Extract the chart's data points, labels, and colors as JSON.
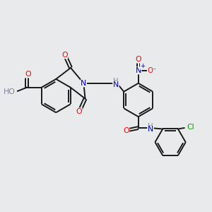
{
  "background_color": "#e8eaeb",
  "bond_color": "#1a1a1a",
  "atom_colors": {
    "O": "#ff0000",
    "N": "#0000cc",
    "Cl": "#00aa00",
    "H": "#778899",
    "C": "#1a1a1a"
  },
  "figsize": [
    3.0,
    3.0
  ],
  "dpi": 100
}
